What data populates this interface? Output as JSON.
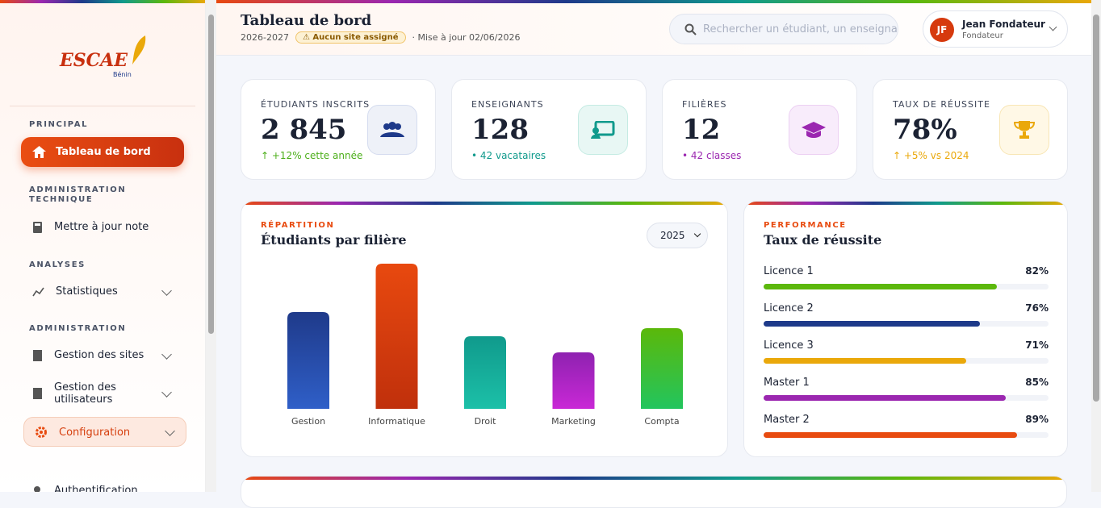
{
  "sidebar": {
    "logo": {
      "name": "ESCAE",
      "subtitle": "Bénin"
    },
    "sections": [
      {
        "title": "PRINCIPAL",
        "items": [
          "Tableau de bord"
        ]
      },
      {
        "title": "ADMINISTRATION TECHNIQUE",
        "items": [
          "Mettre à jour note"
        ]
      },
      {
        "title": "ANALYSES",
        "items": [
          "Statistiques"
        ]
      },
      {
        "title": "ADMINISTRATION",
        "items": [
          "Gestion des sites",
          "Gestion des utilisateurs",
          "Configuration"
        ]
      },
      {
        "title": null,
        "items": [
          "Authentification"
        ]
      }
    ]
  },
  "header": {
    "title": "Tableau de bord",
    "year": "2026-2027",
    "badge": "Aucun site assigné",
    "updated": "· Mise à jour 02/06/2026",
    "search_placeholder": "Rechercher un étudiant, un enseignant",
    "user": {
      "initials": "JF",
      "name": "Jean Fondateur",
      "role": "Fondateur"
    }
  },
  "stats": [
    {
      "label": "ÉTUDIANTS INSCRITS",
      "value": "2 845",
      "note": "↑ +12% cette année"
    },
    {
      "label": "ENSEIGNANTS",
      "value": "128",
      "note": "• 42 vacataires"
    },
    {
      "label": "FILIÈRES",
      "value": "12",
      "note": "• 42 classes"
    },
    {
      "label": "TAUX DE RÉUSSITE",
      "value": "78%",
      "note": "↑ +5% vs 2024"
    }
  ],
  "chart_data": [
    {
      "type": "bar",
      "kicker": "RÉPARTITION",
      "title": "Étudiants par filière",
      "filter": "2025",
      "categories": [
        "Gestion",
        "Informatique",
        "Droit",
        "Marketing",
        "Compta"
      ],
      "values": [
        120,
        180,
        90,
        70,
        100
      ],
      "colors": [
        [
          "#1f3a8a",
          "#2f5fc8"
        ],
        [
          "#e8490f",
          "#c0300c"
        ],
        [
          "#109a8c",
          "#1cc0a8"
        ],
        [
          "#8e22b0",
          "#c928d6"
        ],
        [
          "#5bb80a",
          "#22c55e"
        ]
      ],
      "ylim": [
        0,
        180
      ]
    },
    {
      "type": "hbar",
      "kicker": "PERFORMANCE",
      "title": "Taux de réussite",
      "categories": [
        "Licence 1",
        "Licence 2",
        "Licence 3",
        "Master 1",
        "Master 2"
      ],
      "values": [
        82,
        76,
        71,
        85,
        89
      ],
      "value_labels": [
        "82%",
        "76%",
        "71%",
        "85%",
        "89%"
      ],
      "colors": [
        "#5cb80c",
        "#1e3a8a",
        "#eaa80a",
        "#9b27b0",
        "#e84b10"
      ],
      "xlim": [
        0,
        100
      ]
    }
  ]
}
